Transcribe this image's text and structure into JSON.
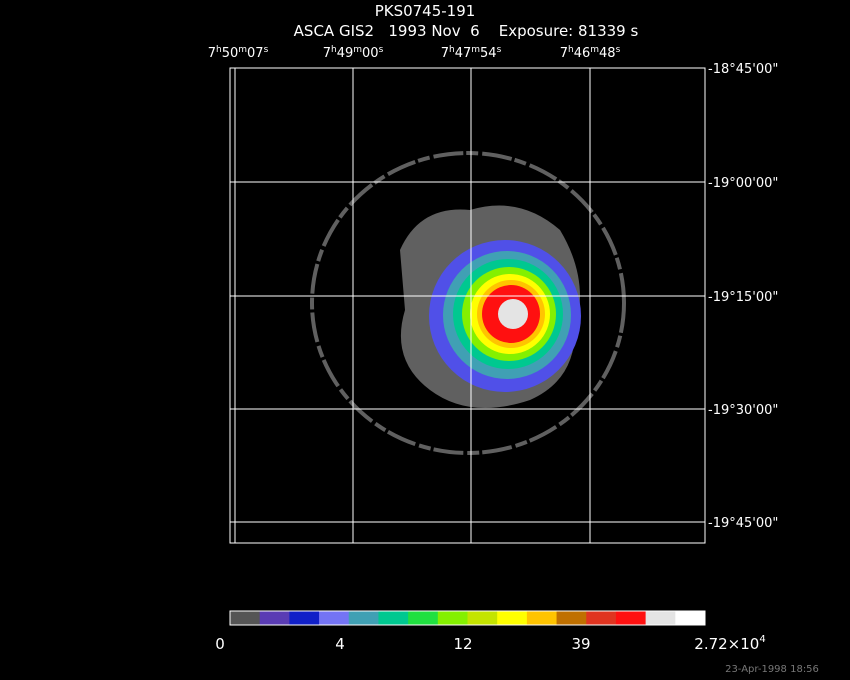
{
  "title": "PKS0745-191",
  "subtitle": "ASCA GIS2   1993 Nov  6    Exposure: 81339 s",
  "ra_ticks": [
    [
      "7",
      "h",
      "50",
      "m",
      "07",
      "s"
    ],
    [
      "7",
      "h",
      "49",
      "m",
      "00",
      "s"
    ],
    [
      "7",
      "h",
      "47",
      "m",
      "54",
      "s"
    ],
    [
      "7",
      "h",
      "46",
      "m",
      "48",
      "s"
    ]
  ],
  "dec_ticks": [
    "-18°45'00\"",
    "-19°00'00\"",
    "-19°15'00\"",
    "-19°30'00\"",
    "-19°45'00\""
  ],
  "colorbar": {
    "colors": [
      "#555555",
      "#5a3cb4",
      "#1020c8",
      "#7474f4",
      "#40a0b4",
      "#00c890",
      "#20e040",
      "#84f000",
      "#c4e400",
      "#ffff00",
      "#ffc400",
      "#c07000",
      "#e03420",
      "#ff1010",
      "#e4e4e4",
      "#ffffff"
    ],
    "labels": [
      [
        "0"
      ],
      [
        "4"
      ],
      [
        "12"
      ],
      [
        "39"
      ],
      [
        "2.72×10",
        "4"
      ]
    ]
  },
  "footer": "23-Apr-1998 18:56"
}
